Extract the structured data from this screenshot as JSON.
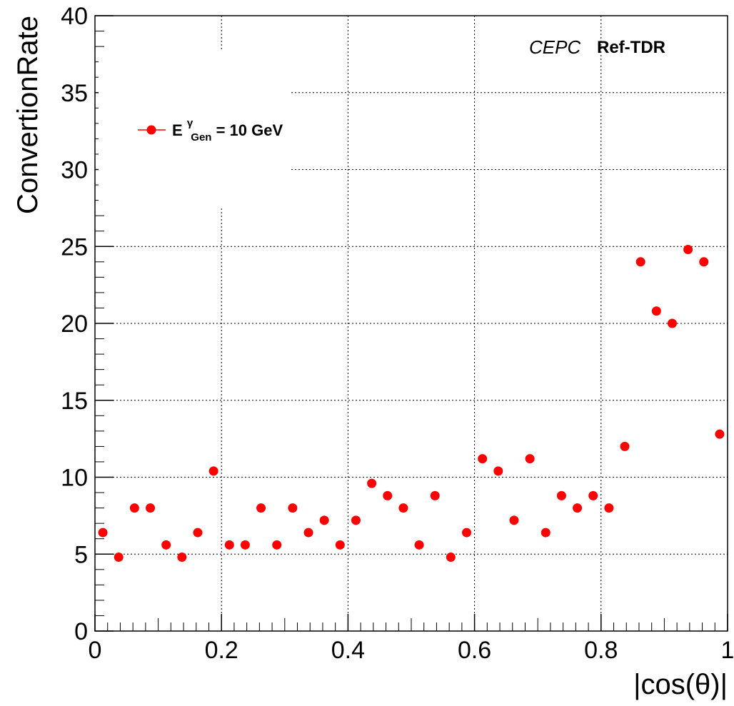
{
  "chart_data": {
    "type": "scatter",
    "xlabel": "|cos(θ)|",
    "ylabel": "ConvertionRate",
    "xlim": [
      0,
      1
    ],
    "ylim": [
      0,
      40
    ],
    "x_ticks": [
      "0",
      "0.2",
      "0.4",
      "0.6",
      "0.8",
      "1"
    ],
    "y_ticks": [
      "0",
      "5",
      "10",
      "15",
      "20",
      "25",
      "30",
      "35",
      "40"
    ],
    "grid": true,
    "legend_position": "top-left",
    "annotation": {
      "experiment": "CEPC",
      "tag": "Ref-TDR"
    },
    "series": [
      {
        "legend_main": "E",
        "legend_sup": "γ",
        "legend_sub": "Gen",
        "legend_rest": " = 10 GeV",
        "color": "#ff0000",
        "x": [
          0.0125,
          0.0375,
          0.0625,
          0.0875,
          0.1125,
          0.1375,
          0.1625,
          0.1875,
          0.2125,
          0.2375,
          0.2625,
          0.2875,
          0.3125,
          0.3375,
          0.3625,
          0.3875,
          0.4125,
          0.4375,
          0.4625,
          0.4875,
          0.5125,
          0.5375,
          0.5625,
          0.5875,
          0.6125,
          0.6375,
          0.6625,
          0.6875,
          0.7125,
          0.7375,
          0.7625,
          0.7875,
          0.8125,
          0.8375,
          0.8625,
          0.8875,
          0.9125,
          0.9375,
          0.9625,
          0.9875
        ],
        "y": [
          6.4,
          4.8,
          8.0,
          8.0,
          5.6,
          4.8,
          6.4,
          10.4,
          5.6,
          5.6,
          8.0,
          5.6,
          8.0,
          6.4,
          7.2,
          5.6,
          7.2,
          9.6,
          8.8,
          8.0,
          5.6,
          8.8,
          4.8,
          6.4,
          11.2,
          10.4,
          7.2,
          11.2,
          6.4,
          8.8,
          8.0,
          8.8,
          8.0,
          12.0,
          24.0,
          20.8,
          20.0,
          24.8,
          24.0,
          12.8
        ]
      }
    ]
  }
}
